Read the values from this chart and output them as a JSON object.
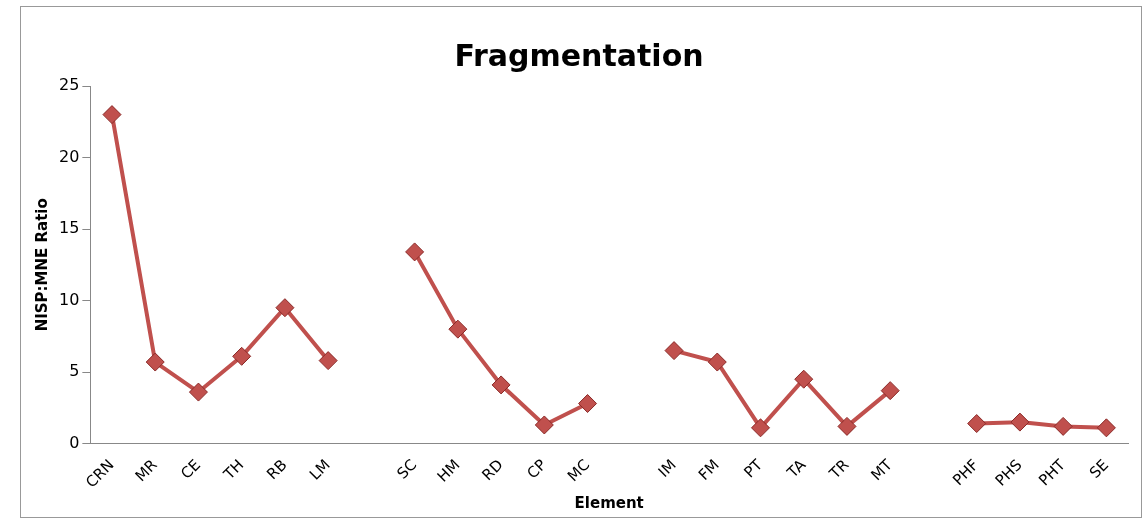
{
  "chart_data": {
    "type": "line",
    "title": "Fragmentation",
    "xlabel": "Element",
    "ylabel": "NISP:MNE Ratio",
    "categories": [
      "CRN",
      "MR",
      "CE",
      "TH",
      "RB",
      "LM",
      null,
      "SC",
      "HM",
      "RD",
      "CP",
      "MC",
      null,
      "IM",
      "FM",
      "PT",
      "TA",
      "TR",
      "MT",
      null,
      "PHF",
      "PHS",
      "PHT",
      "SE"
    ],
    "series": [
      {
        "color": "#c0504d",
        "values": [
          23,
          5.7,
          3.6,
          6.1,
          9.5,
          5.8,
          null,
          13.4,
          8,
          4.1,
          1.3,
          2.8,
          null,
          6.5,
          5.7,
          1.1,
          4.5,
          1.2,
          3.7,
          null,
          1.4,
          1.5,
          1.2,
          1.1
        ]
      }
    ],
    "ylim": [
      0,
      25
    ],
    "yticks": [
      0,
      5,
      10,
      15,
      20,
      25
    ],
    "grid": false,
    "legend": false,
    "marker": "diamond",
    "line_style": "solid"
  }
}
